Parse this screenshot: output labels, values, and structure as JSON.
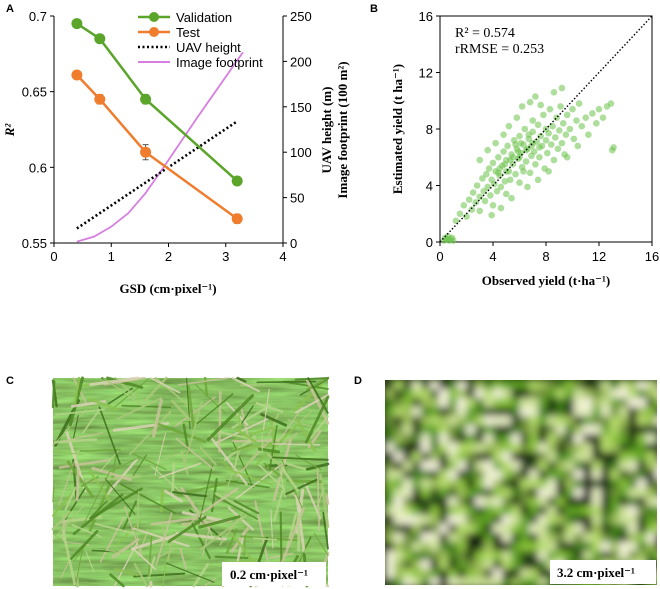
{
  "panels": {
    "a": {
      "letter": "A"
    },
    "b": {
      "letter": "B"
    },
    "c": {
      "letter": "C",
      "scale_label": "0.2 cm·pixel⁻¹"
    },
    "d": {
      "letter": "D",
      "scale_label": "3.2 cm·pixel⁻¹"
    }
  },
  "colors": {
    "validation": "#5aa52a",
    "test": "#f07d2e",
    "uav": "#000000",
    "footprint": "#d77fe0",
    "scatter": "#6cc24a",
    "identity": "#000000"
  },
  "chart_data": [
    {
      "id": "A",
      "type": "line",
      "xlabel": "GSD (cm·pixel⁻¹)",
      "ylabel": "R²",
      "y2label": "UAV height (m)",
      "y3label": "Image footprint (100 m²)",
      "xlim": [
        0,
        4
      ],
      "ylim": [
        0.55,
        0.7
      ],
      "y2lim": [
        0,
        250
      ],
      "xticks": [
        "0",
        "1",
        "2",
        "3",
        "4"
      ],
      "yticks": [
        "0.55",
        "0.6",
        "0.65",
        "0.7"
      ],
      "y2ticks": [
        "0",
        "50",
        "100",
        "150",
        "200",
        "250"
      ],
      "legend": [
        "Validation",
        "Test",
        "UAV height",
        "Image footprint"
      ],
      "series": [
        {
          "name": "Validation",
          "axis": "left",
          "x": [
            0.4,
            0.8,
            1.6,
            3.2
          ],
          "values": [
            0.695,
            0.685,
            0.645,
            0.591
          ],
          "errors": [
            0.0,
            0.0,
            0.003,
            0.0
          ]
        },
        {
          "name": "Test",
          "axis": "left",
          "x": [
            0.4,
            0.8,
            1.6,
            3.2
          ],
          "values": [
            0.661,
            0.645,
            0.61,
            0.566
          ],
          "errors": [
            0.0,
            0.003,
            0.005,
            0.003
          ]
        },
        {
          "name": "UAV height",
          "axis": "right",
          "x": [
            0.4,
            3.2
          ],
          "values": [
            16,
            134
          ]
        },
        {
          "name": "Image footprint",
          "axis": "right",
          "x": [
            0.4,
            0.7,
            1.0,
            1.3,
            1.6,
            1.9,
            2.2,
            2.5,
            2.8,
            3.1,
            3.3
          ],
          "values": [
            1.5,
            7,
            18,
            33,
            55,
            82,
            110,
            138,
            165,
            192,
            210
          ]
        }
      ]
    },
    {
      "id": "B",
      "type": "scatter",
      "xlabel": "Observed yield (t·ha⁻¹)",
      "ylabel": "Estimated yield (t ha⁻¹)",
      "xlim": [
        0,
        16
      ],
      "ylim": [
        0,
        16
      ],
      "xticks": [
        "0",
        "4",
        "8",
        "12",
        "16"
      ],
      "yticks": [
        "0",
        "4",
        "8",
        "12",
        "16"
      ],
      "annotation_r2": "R² = 0.574",
      "annotation_rrmse": "rRMSE = 0.253",
      "points": [
        [
          0.3,
          0.1
        ],
        [
          0.5,
          0.2
        ],
        [
          0.7,
          0.1
        ],
        [
          0.4,
          0.3
        ],
        [
          0.8,
          0.2
        ],
        [
          1.0,
          0.1
        ],
        [
          0.6,
          0.4
        ],
        [
          0.9,
          0.3
        ],
        [
          1.2,
          1.5
        ],
        [
          1.5,
          2.0
        ],
        [
          1.8,
          2.6
        ],
        [
          2.0,
          1.8
        ],
        [
          2.2,
          3.0
        ],
        [
          2.4,
          2.3
        ],
        [
          2.5,
          3.5
        ],
        [
          2.7,
          2.8
        ],
        [
          2.8,
          4.0
        ],
        [
          3.0,
          3.2
        ],
        [
          3.0,
          2.2
        ],
        [
          3.2,
          4.5
        ],
        [
          3.3,
          3.6
        ],
        [
          3.4,
          2.9
        ],
        [
          3.5,
          4.8
        ],
        [
          3.6,
          3.9
        ],
        [
          3.7,
          5.2
        ],
        [
          3.8,
          3.3
        ],
        [
          3.9,
          4.4
        ],
        [
          4.0,
          5.6
        ],
        [
          4.0,
          2.6
        ],
        [
          4.1,
          4.1
        ],
        [
          4.2,
          5.0
        ],
        [
          4.3,
          3.6
        ],
        [
          4.4,
          6.0
        ],
        [
          4.5,
          4.7
        ],
        [
          4.6,
          3.9
        ],
        [
          4.7,
          5.4
        ],
        [
          4.8,
          6.4
        ],
        [
          4.9,
          4.3
        ],
        [
          5.0,
          5.8
        ],
        [
          5.0,
          3.4
        ],
        [
          5.1,
          6.8
        ],
        [
          5.2,
          5.0
        ],
        [
          5.3,
          4.4
        ],
        [
          5.4,
          6.2
        ],
        [
          5.5,
          5.5
        ],
        [
          5.6,
          7.2
        ],
        [
          5.7,
          4.8
        ],
        [
          5.8,
          6.6
        ],
        [
          5.9,
          5.9
        ],
        [
          6.0,
          4.2
        ],
        [
          6.0,
          7.5
        ],
        [
          6.1,
          6.3
        ],
        [
          6.2,
          5.3
        ],
        [
          6.3,
          6.9
        ],
        [
          6.4,
          8.0
        ],
        [
          6.5,
          5.7
        ],
        [
          6.6,
          6.6
        ],
        [
          6.7,
          7.3
        ],
        [
          6.8,
          4.9
        ],
        [
          6.9,
          6.1
        ],
        [
          7.0,
          7.8
        ],
        [
          7.0,
          8.6
        ],
        [
          7.1,
          6.4
        ],
        [
          7.2,
          5.5
        ],
        [
          7.3,
          7.1
        ],
        [
          7.4,
          8.3
        ],
        [
          7.5,
          6.0
        ],
        [
          7.6,
          7.5
        ],
        [
          7.7,
          6.8
        ],
        [
          7.8,
          9.0
        ],
        [
          7.9,
          5.2
        ],
        [
          8.0,
          7.2
        ],
        [
          8.0,
          8.0
        ],
        [
          8.1,
          6.3
        ],
        [
          8.2,
          7.7
        ],
        [
          8.3,
          9.4
        ],
        [
          8.4,
          6.9
        ],
        [
          8.5,
          8.2
        ],
        [
          8.6,
          5.8
        ],
        [
          8.7,
          7.4
        ],
        [
          8.8,
          8.8
        ],
        [
          8.9,
          6.6
        ],
        [
          9.0,
          7.9
        ],
        [
          9.1,
          9.6
        ],
        [
          9.2,
          7.0
        ],
        [
          9.3,
          8.4
        ],
        [
          9.4,
          6.2
        ],
        [
          9.5,
          7.6
        ],
        [
          9.6,
          9.0
        ],
        [
          9.8,
          8.0
        ],
        [
          10.0,
          9.4
        ],
        [
          10.1,
          7.3
        ],
        [
          10.3,
          8.6
        ],
        [
          10.5,
          9.8
        ],
        [
          10.7,
          8.2
        ],
        [
          11.0,
          8.8
        ],
        [
          11.2,
          7.6
        ],
        [
          11.5,
          9.1
        ],
        [
          11.8,
          8.4
        ],
        [
          12.0,
          9.4
        ],
        [
          12.3,
          8.8
        ],
        [
          12.6,
          9.6
        ],
        [
          12.9,
          9.8
        ],
        [
          13.0,
          6.5
        ],
        [
          13.1,
          6.7
        ],
        [
          6.2,
          9.6
        ],
        [
          5.8,
          8.8
        ],
        [
          5.2,
          8.2
        ],
        [
          4.8,
          7.6
        ],
        [
          4.2,
          7.0
        ],
        [
          3.6,
          6.5
        ],
        [
          3.0,
          5.8
        ],
        [
          6.8,
          9.9
        ],
        [
          7.6,
          9.7
        ],
        [
          8.6,
          10.6
        ],
        [
          9.2,
          10.9
        ],
        [
          7.2,
          10.3
        ],
        [
          6.6,
          3.9
        ],
        [
          7.4,
          4.4
        ],
        [
          5.4,
          3.1
        ],
        [
          4.6,
          2.4
        ],
        [
          3.9,
          1.9
        ],
        [
          8.2,
          5.0
        ],
        [
          9.6,
          6.0
        ],
        [
          10.4,
          6.8
        ],
        [
          5.5,
          6.0
        ],
        [
          6.0,
          6.0
        ],
        [
          6.5,
          6.5
        ],
        [
          5.0,
          5.0
        ],
        [
          4.5,
          5.2
        ],
        [
          7.0,
          7.0
        ],
        [
          6.3,
          5.0
        ],
        [
          5.7,
          6.9
        ],
        [
          4.9,
          5.5
        ],
        [
          6.7,
          7.6
        ],
        [
          5.3,
          5.8
        ],
        [
          6.1,
          7.0
        ],
        [
          4.4,
          4.9
        ],
        [
          7.5,
          6.7
        ],
        [
          5.9,
          6.4
        ],
        [
          6.9,
          6.8
        ]
      ]
    }
  ]
}
